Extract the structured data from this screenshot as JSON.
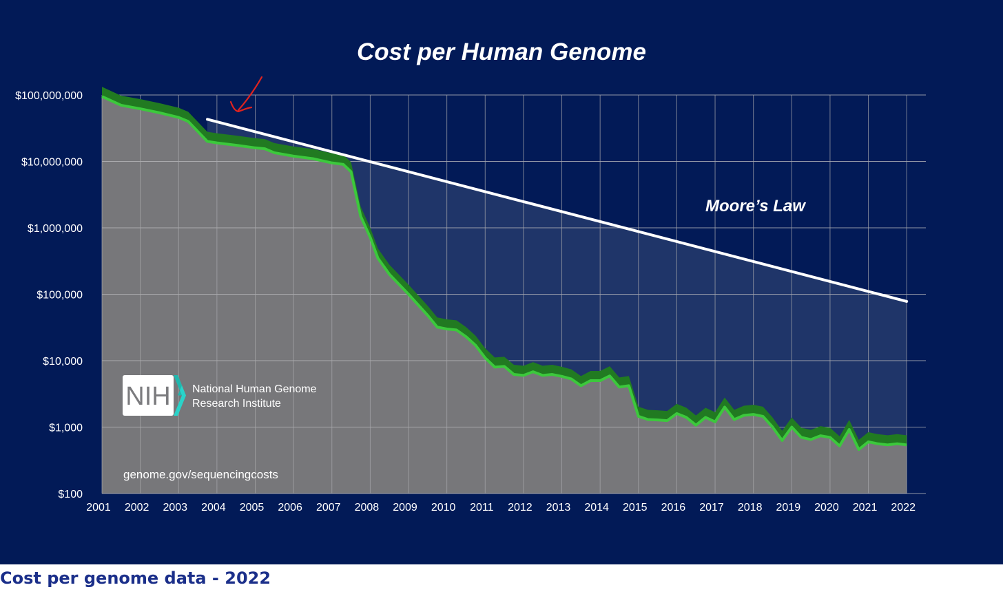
{
  "caption": "Cost per genome data - 2022",
  "logo": {
    "acronym": "NIH",
    "line1": "National Human Genome",
    "line2": "Research Institute"
  },
  "source_url": "genome.gov/sequencingcosts",
  "colors": {
    "background": "#021a57",
    "area_fill": "#77777a",
    "cost_line": "#3cc83c",
    "cost_band": "#217a21",
    "trend_line": "#ffffff",
    "trend_area": "#1f3569",
    "annotation_arrow": "#e0231f",
    "caption_text": "#1b2f8a"
  },
  "annotation": {
    "icon": "red-arrow-icon"
  },
  "chart_data": {
    "type": "area",
    "title": "Cost per Human Genome",
    "xlabel": "",
    "ylabel": "",
    "y_scale": "log",
    "ylim": [
      100,
      100000000
    ],
    "xlim": [
      2001.0,
      2022.5
    ],
    "y_ticks": [
      {
        "value": 100,
        "label": "$100"
      },
      {
        "value": 1000,
        "label": "$1,000"
      },
      {
        "value": 10000,
        "label": "$10,000"
      },
      {
        "value": 100000,
        "label": "$100,000"
      },
      {
        "value": 1000000,
        "label": "$1,000,000"
      },
      {
        "value": 10000000,
        "label": "$10,000,000"
      },
      {
        "value": 100000000,
        "label": "$100,000,000"
      }
    ],
    "x_ticks": [
      {
        "value": 2001.0,
        "label": "2001"
      },
      {
        "value": 2002.0,
        "label": "2002"
      },
      {
        "value": 2003.0,
        "label": "2003"
      },
      {
        "value": 2004.0,
        "label": "2004"
      },
      {
        "value": 2005.0,
        "label": "2005"
      },
      {
        "value": 2006.0,
        "label": "2006"
      },
      {
        "value": 2007.0,
        "label": "2007"
      },
      {
        "value": 2008.0,
        "label": "2008"
      },
      {
        "value": 2009.0,
        "label": "2009"
      },
      {
        "value": 2010.0,
        "label": "2010"
      },
      {
        "value": 2011.0,
        "label": "2011"
      },
      {
        "value": 2012.0,
        "label": "2012"
      },
      {
        "value": 2013.0,
        "label": "2013"
      },
      {
        "value": 2014.0,
        "label": "2014"
      },
      {
        "value": 2015.0,
        "label": "2015"
      },
      {
        "value": 2016.0,
        "label": "2016"
      },
      {
        "value": 2017.0,
        "label": "2017"
      },
      {
        "value": 2018.0,
        "label": "2018"
      },
      {
        "value": 2019.0,
        "label": "2019"
      },
      {
        "value": 2020.0,
        "label": "2020"
      },
      {
        "value": 2021.0,
        "label": "2021"
      },
      {
        "value": 2022.0,
        "label": "2022"
      }
    ],
    "grid": true,
    "series": [
      {
        "name": "",
        "points": [
          [
            2001.0,
            95000000
          ],
          [
            2001.5,
            70000000
          ],
          [
            2002.0,
            62000000
          ],
          [
            2002.5,
            54000000
          ],
          [
            2003.0,
            46000000
          ],
          [
            2003.25,
            40000000
          ],
          [
            2003.75,
            20000000
          ],
          [
            2004.0,
            19000000
          ],
          [
            2004.5,
            17500000
          ],
          [
            2005.0,
            16000000
          ],
          [
            2005.25,
            15500000
          ],
          [
            2005.5,
            13500000
          ],
          [
            2006.0,
            12000000
          ],
          [
            2006.5,
            11000000
          ],
          [
            2007.0,
            9500000
          ],
          [
            2007.3,
            9000000
          ],
          [
            2007.5,
            7000000
          ],
          [
            2007.75,
            1500000
          ],
          [
            2008.0,
            720000
          ],
          [
            2008.2,
            350000
          ],
          [
            2008.5,
            200000
          ],
          [
            2009.0,
            100000
          ],
          [
            2009.5,
            48000
          ],
          [
            2009.75,
            32000
          ],
          [
            2010.0,
            30000
          ],
          [
            2010.25,
            29000
          ],
          [
            2010.5,
            23000
          ],
          [
            2010.75,
            17000
          ],
          [
            2011.0,
            11000
          ],
          [
            2011.25,
            8000
          ],
          [
            2011.5,
            8200
          ],
          [
            2011.75,
            6200
          ],
          [
            2012.0,
            6000
          ],
          [
            2012.25,
            6800
          ],
          [
            2012.5,
            6000
          ],
          [
            2012.75,
            6200
          ],
          [
            2013.0,
            5800
          ],
          [
            2013.25,
            5300
          ],
          [
            2013.5,
            4200
          ],
          [
            2013.75,
            5000
          ],
          [
            2014.0,
            5000
          ],
          [
            2014.25,
            5900
          ],
          [
            2014.5,
            4000
          ],
          [
            2014.75,
            4200
          ],
          [
            2015.0,
            1450
          ],
          [
            2015.25,
            1300
          ],
          [
            2015.5,
            1280
          ],
          [
            2015.75,
            1250
          ],
          [
            2016.0,
            1600
          ],
          [
            2016.25,
            1400
          ],
          [
            2016.5,
            1070
          ],
          [
            2016.75,
            1400
          ],
          [
            2017.0,
            1200
          ],
          [
            2017.25,
            2000
          ],
          [
            2017.5,
            1300
          ],
          [
            2017.75,
            1500
          ],
          [
            2018.0,
            1550
          ],
          [
            2018.25,
            1450
          ],
          [
            2018.5,
            1000
          ],
          [
            2018.75,
            630
          ],
          [
            2019.0,
            1000
          ],
          [
            2019.25,
            700
          ],
          [
            2019.5,
            650
          ],
          [
            2019.75,
            740
          ],
          [
            2020.0,
            700
          ],
          [
            2020.25,
            520
          ],
          [
            2020.5,
            920
          ],
          [
            2020.75,
            460
          ],
          [
            2021.0,
            600
          ],
          [
            2021.25,
            560
          ],
          [
            2021.5,
            540
          ],
          [
            2021.75,
            560
          ],
          [
            2022.0,
            540
          ]
        ]
      },
      {
        "name": "Moore’s Law",
        "points": [
          [
            2003.75,
            43000000
          ],
          [
            2022.0,
            78000
          ]
        ]
      }
    ]
  }
}
